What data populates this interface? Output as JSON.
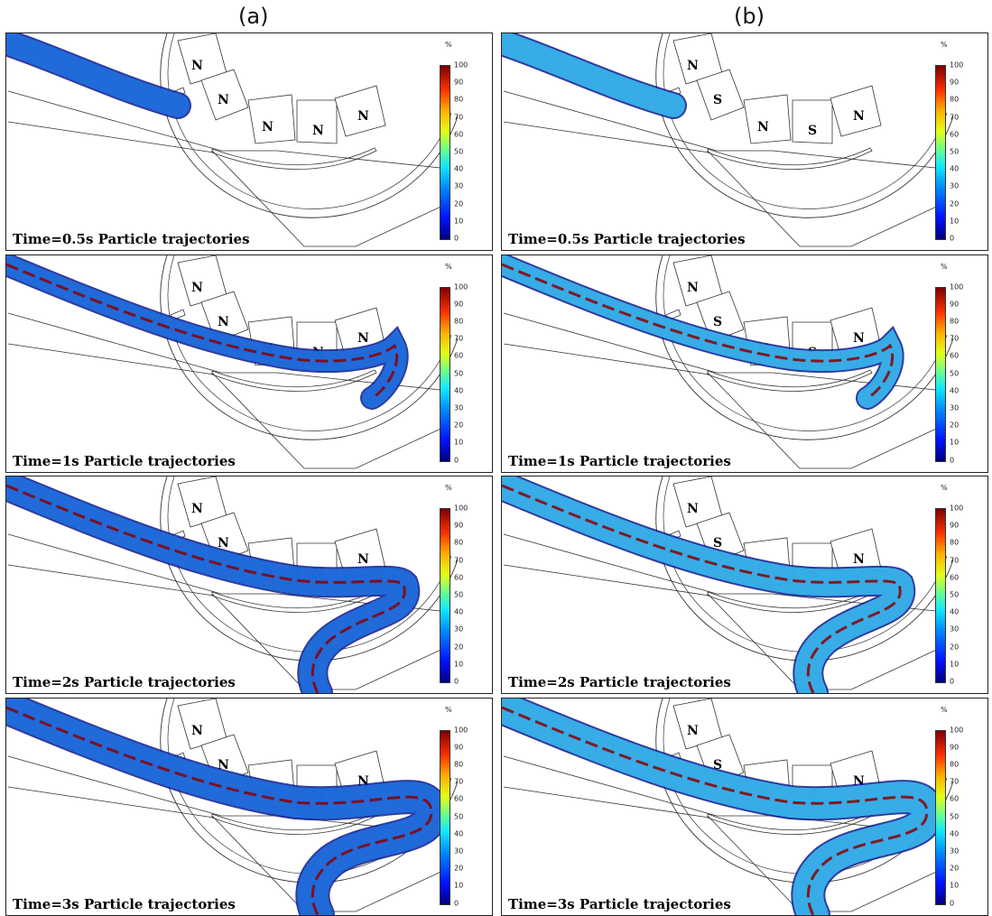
{
  "column_labels": [
    "(a)",
    "(b)"
  ],
  "colorbar": {
    "unit": "%",
    "ticks": [
      "100",
      "90",
      "80",
      "70",
      "60",
      "50",
      "40",
      "30",
      "20",
      "10",
      "0"
    ],
    "gradient_colors": [
      "#00007f",
      "#0010ff",
      "#008cff",
      "#10e8ff",
      "#6dff8a",
      "#e2ff18",
      "#ffb000",
      "#ff3000",
      "#7f0000"
    ]
  },
  "magnet_labels": {
    "a": [
      "N",
      "N",
      "N",
      "N",
      "N"
    ],
    "b": [
      "N",
      "S",
      "N",
      "S",
      "N"
    ]
  },
  "rows": [
    {
      "caption_a": "Time=0.5s Particle trajectories",
      "caption_b": "Time=0.5s Particle trajectories",
      "stage": 0
    },
    {
      "caption_a": "Time=1s Particle trajectories",
      "caption_b": "Time=1s Particle trajectories",
      "stage": 1
    },
    {
      "caption_a": "Time=2s Particle trajectories",
      "caption_b": "Time=2s Particle trajectories",
      "stage": 2
    },
    {
      "caption_a": "Time=3s Particle trajectories",
      "caption_b": "Time=3s Particle trajectories",
      "stage": 3
    }
  ],
  "colors": {
    "line": "#333333",
    "stream_dark": "#0a1a8c",
    "stream_mid": "#1f6fe0",
    "stream_light": "#39b8ef",
    "stream_red": "#8b0000"
  }
}
